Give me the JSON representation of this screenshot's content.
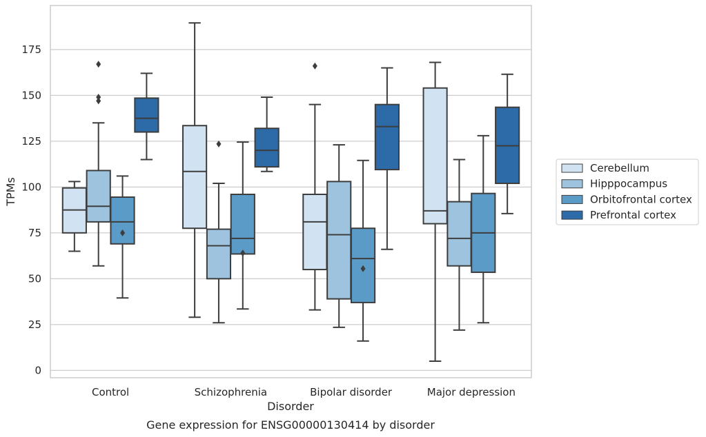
{
  "chart_data": {
    "type": "box",
    "title": "",
    "caption": "Gene expression for ENSG00000130414 by disorder",
    "xlabel": "Disorder",
    "ylabel": "TPMs",
    "ylim": [
      -4,
      199
    ],
    "yticks": [
      0,
      25,
      50,
      75,
      100,
      125,
      150,
      175
    ],
    "grid": "horizontal",
    "legend_position": "right",
    "categories": [
      "Control",
      "Schizophrenia",
      "Bipolar disorder",
      "Major depression"
    ],
    "series": [
      {
        "name": "Cerebellum",
        "color": "#d1e2f2",
        "boxes": [
          {
            "whislo": 65,
            "q1": 75,
            "med": 87.5,
            "q3": 99.5,
            "whishi": 103,
            "fliers": []
          },
          {
            "whislo": 29,
            "q1": 77.5,
            "med": 108.5,
            "q3": 133.5,
            "whishi": 189.5,
            "fliers": []
          },
          {
            "whislo": 33,
            "q1": 55,
            "med": 81,
            "q3": 96,
            "whishi": 145,
            "fliers": [
              166
            ]
          },
          {
            "whislo": 5,
            "q1": 80,
            "med": 87,
            "q3": 154,
            "whishi": 168,
            "fliers": []
          }
        ]
      },
      {
        "name": "Hipppocampus",
        "color": "#9dc3df",
        "boxes": [
          {
            "whislo": 57,
            "q1": 81,
            "med": 89.5,
            "q3": 109,
            "whishi": 135,
            "fliers": [
              147,
              149,
              167
            ]
          },
          {
            "whislo": 26,
            "q1": 50,
            "med": 68,
            "q3": 77,
            "whishi": 102,
            "fliers": [
              123.5
            ]
          },
          {
            "whislo": 23.5,
            "q1": 39,
            "med": 74,
            "q3": 103,
            "whishi": 123,
            "fliers": []
          },
          {
            "whislo": 22,
            "q1": 57,
            "med": 72,
            "q3": 92,
            "whishi": 115,
            "fliers": []
          }
        ]
      },
      {
        "name": "Orbitofrontal cortex",
        "color": "#5b9bc8",
        "boxes": [
          {
            "whislo": 39.5,
            "q1": 69,
            "med": 81,
            "q3": 94.5,
            "whishi": 106,
            "fliers": [
              75
            ]
          },
          {
            "whislo": 33.5,
            "q1": 63.5,
            "med": 72,
            "q3": 96,
            "whishi": 124.5,
            "fliers": [
              64
            ]
          },
          {
            "whislo": 16,
            "q1": 37,
            "med": 61,
            "q3": 77.5,
            "whishi": 114.5,
            "fliers": [
              55.5
            ]
          },
          {
            "whislo": 26,
            "q1": 53.5,
            "med": 75,
            "q3": 96.5,
            "whishi": 128,
            "fliers": []
          }
        ]
      },
      {
        "name": "Prefrontal cortex",
        "color": "#2c6aa8",
        "boxes": [
          {
            "whislo": 115,
            "q1": 130,
            "med": 137.5,
            "q3": 148.5,
            "whishi": 162,
            "fliers": []
          },
          {
            "whislo": 108.5,
            "q1": 111,
            "med": 120,
            "q3": 132,
            "whishi": 149,
            "fliers": []
          },
          {
            "whislo": 66,
            "q1": 109.5,
            "med": 133,
            "q3": 145,
            "whishi": 165,
            "fliers": []
          },
          {
            "whislo": 85.5,
            "q1": 102,
            "med": 122.5,
            "q3": 143.5,
            "whishi": 161.5,
            "fliers": []
          }
        ]
      }
    ]
  }
}
